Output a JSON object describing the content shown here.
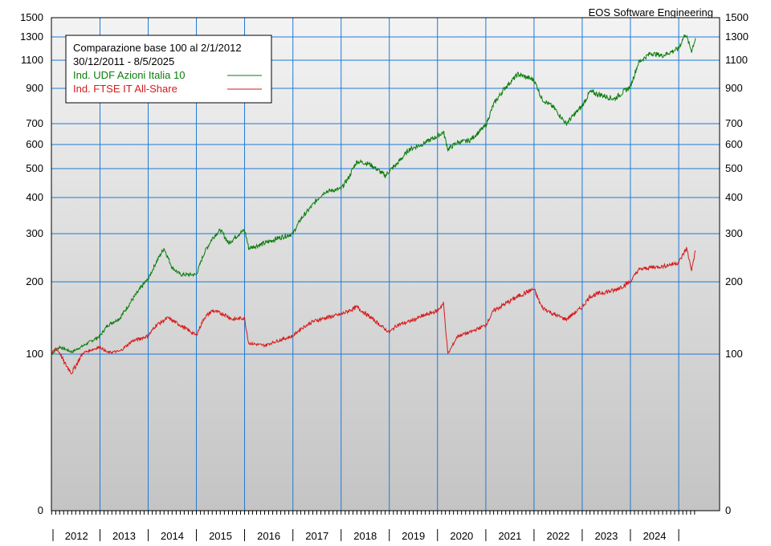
{
  "credit": "EOS Software Engineering",
  "chart_data": {
    "type": "line",
    "scale": "nonlinear (compressed log-like)",
    "legend": {
      "title": "Comparazione base 100 al 2/1/2012",
      "range": "30/12/2011 - 8/5/2025",
      "placement": "top-left"
    },
    "y_ticks": [
      0,
      100,
      200,
      300,
      400,
      500,
      600,
      700,
      900,
      1100,
      1300,
      1500
    ],
    "x_years": [
      "2012",
      "2013",
      "2014",
      "2015",
      "2016",
      "2017",
      "2018",
      "2019",
      "2020",
      "2021",
      "2022",
      "2023",
      "2024"
    ],
    "x_range": [
      "2011-12-30",
      "2025-05-08"
    ],
    "grid": true,
    "colors": {
      "grid": "#1e7ad6",
      "background_top": "#f3f3f3",
      "background_bottom": "#c4c4c4"
    },
    "series": [
      {
        "name": "Ind. UDF Azioni Italia 10",
        "color": "#0a7d0a",
        "points": [
          [
            "2011-12-30",
            100
          ],
          [
            "2012-03-01",
            110
          ],
          [
            "2012-06-01",
            103
          ],
          [
            "2012-09-01",
            112
          ],
          [
            "2012-12-31",
            125
          ],
          [
            "2013-03-01",
            140
          ],
          [
            "2013-06-01",
            150
          ],
          [
            "2013-09-01",
            175
          ],
          [
            "2013-12-31",
            205
          ],
          [
            "2014-03-01",
            240
          ],
          [
            "2014-05-01",
            270
          ],
          [
            "2014-07-01",
            230
          ],
          [
            "2014-09-01",
            215
          ],
          [
            "2014-12-31",
            215
          ],
          [
            "2015-03-01",
            260
          ],
          [
            "2015-05-01",
            290
          ],
          [
            "2015-07-01",
            310
          ],
          [
            "2015-09-01",
            280
          ],
          [
            "2015-12-31",
            310
          ],
          [
            "2016-02-01",
            270
          ],
          [
            "2016-06-01",
            280
          ],
          [
            "2016-09-01",
            290
          ],
          [
            "2016-12-31",
            300
          ],
          [
            "2017-03-01",
            340
          ],
          [
            "2017-06-01",
            380
          ],
          [
            "2017-09-01",
            420
          ],
          [
            "2017-12-31",
            430
          ],
          [
            "2018-03-01",
            470
          ],
          [
            "2018-05-01",
            530
          ],
          [
            "2018-08-01",
            520
          ],
          [
            "2018-12-01",
            475
          ],
          [
            "2019-03-01",
            520
          ],
          [
            "2019-06-01",
            580
          ],
          [
            "2019-09-01",
            600
          ],
          [
            "2019-12-31",
            640
          ],
          [
            "2020-02-15",
            660
          ],
          [
            "2020-03-20",
            580
          ],
          [
            "2020-06-01",
            610
          ],
          [
            "2020-09-01",
            620
          ],
          [
            "2020-12-31",
            690
          ],
          [
            "2021-03-01",
            810
          ],
          [
            "2021-06-01",
            910
          ],
          [
            "2021-09-01",
            1000
          ],
          [
            "2021-12-31",
            960
          ],
          [
            "2022-03-01",
            840
          ],
          [
            "2022-06-01",
            790
          ],
          [
            "2022-09-01",
            700
          ],
          [
            "2022-12-31",
            800
          ],
          [
            "2023-03-01",
            880
          ],
          [
            "2023-06-01",
            860
          ],
          [
            "2023-09-01",
            840
          ],
          [
            "2023-12-31",
            910
          ],
          [
            "2024-03-01",
            1080
          ],
          [
            "2024-06-01",
            1160
          ],
          [
            "2024-09-01",
            1140
          ],
          [
            "2024-12-31",
            1200
          ],
          [
            "2025-02-20",
            1330
          ],
          [
            "2025-04-08",
            1180
          ],
          [
            "2025-05-08",
            1290
          ]
        ]
      },
      {
        "name": "Ind. FTSE IT All-Share",
        "color": "#d61a1a",
        "points": [
          [
            "2011-12-30",
            100
          ],
          [
            "2012-02-01",
            108
          ],
          [
            "2012-04-01",
            95
          ],
          [
            "2012-06-01",
            88
          ],
          [
            "2012-09-01",
            102
          ],
          [
            "2012-12-31",
            110
          ],
          [
            "2013-03-01",
            102
          ],
          [
            "2013-06-01",
            104
          ],
          [
            "2013-09-01",
            118
          ],
          [
            "2013-12-31",
            125
          ],
          [
            "2014-03-01",
            140
          ],
          [
            "2014-06-01",
            150
          ],
          [
            "2014-09-01",
            140
          ],
          [
            "2014-12-31",
            126
          ],
          [
            "2015-03-01",
            150
          ],
          [
            "2015-05-01",
            160
          ],
          [
            "2015-08-01",
            155
          ],
          [
            "2015-10-01",
            148
          ],
          [
            "2015-12-31",
            150
          ],
          [
            "2016-02-01",
            115
          ],
          [
            "2016-06-01",
            112
          ],
          [
            "2016-09-01",
            118
          ],
          [
            "2016-12-31",
            125
          ],
          [
            "2017-03-01",
            135
          ],
          [
            "2017-06-01",
            145
          ],
          [
            "2017-09-01",
            150
          ],
          [
            "2017-12-31",
            155
          ],
          [
            "2018-03-01",
            160
          ],
          [
            "2018-05-01",
            165
          ],
          [
            "2018-09-01",
            148
          ],
          [
            "2018-12-31",
            130
          ],
          [
            "2019-03-01",
            140
          ],
          [
            "2019-06-01",
            145
          ],
          [
            "2019-09-01",
            152
          ],
          [
            "2019-12-31",
            160
          ],
          [
            "2020-02-15",
            170
          ],
          [
            "2020-03-20",
            100
          ],
          [
            "2020-06-01",
            125
          ],
          [
            "2020-09-01",
            130
          ],
          [
            "2020-12-31",
            140
          ],
          [
            "2021-03-01",
            160
          ],
          [
            "2021-06-01",
            170
          ],
          [
            "2021-09-01",
            180
          ],
          [
            "2021-12-31",
            190
          ],
          [
            "2022-03-01",
            165
          ],
          [
            "2022-06-01",
            155
          ],
          [
            "2022-09-01",
            148
          ],
          [
            "2022-12-31",
            165
          ],
          [
            "2023-03-01",
            180
          ],
          [
            "2023-06-01",
            185
          ],
          [
            "2023-09-01",
            188
          ],
          [
            "2023-12-31",
            200
          ],
          [
            "2024-03-01",
            225
          ],
          [
            "2024-06-01",
            230
          ],
          [
            "2024-09-01",
            232
          ],
          [
            "2024-12-31",
            240
          ],
          [
            "2025-03-01",
            270
          ],
          [
            "2025-04-08",
            225
          ],
          [
            "2025-05-08",
            265
          ]
        ]
      }
    ]
  }
}
